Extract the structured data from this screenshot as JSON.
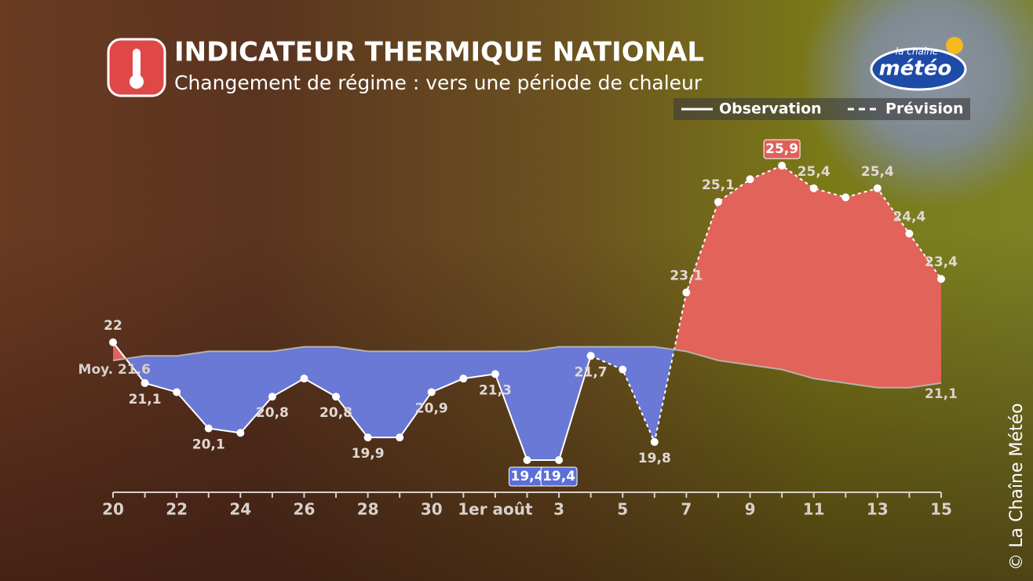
{
  "chart_data": {
    "type": "line",
    "title": "INDICATEUR THERMIQUE NATIONAL",
    "subtitle": "Changement de régime : vers une période de chaleur",
    "brand_top": "la chaîne",
    "brand": "météo",
    "copyright": "© La Chaîne Météo",
    "categories": [
      "20",
      null,
      "22",
      null,
      "24",
      null,
      "26",
      null,
      "28",
      null,
      "30",
      null,
      "1er août",
      null,
      "3",
      null,
      "5",
      null,
      "7",
      null,
      "9",
      null,
      "11",
      null,
      "13",
      null,
      "15"
    ],
    "series": [
      {
        "name": "Observation",
        "color": "#ffffff",
        "dashed": false,
        "values": [
          22,
          21.1,
          20.9,
          20.1,
          20.0,
          20.8,
          21.2,
          20.8,
          19.9,
          19.9,
          20.9,
          21.2,
          21.3,
          19.4,
          19.4,
          21.7,
          null,
          null,
          null,
          null,
          null,
          null,
          null,
          null,
          null,
          null,
          null
        ],
        "value_labels": [
          "22",
          "21,1",
          null,
          "20,1",
          null,
          "20,8",
          null,
          "20,8",
          "19,9",
          null,
          "20,9",
          null,
          "21,3",
          "19,4",
          "19,4",
          "21,7",
          null,
          null,
          null,
          null,
          null,
          null,
          null,
          null,
          null,
          null,
          null
        ]
      },
      {
        "name": "Prévision",
        "color": "#ffffff",
        "dashed": true,
        "values": [
          null,
          null,
          null,
          null,
          null,
          null,
          null,
          null,
          null,
          null,
          null,
          null,
          null,
          null,
          null,
          21.7,
          21.4,
          19.8,
          23.1,
          25.1,
          25.6,
          25.9,
          25.4,
          25.2,
          25.4,
          24.4,
          23.4
        ],
        "value_labels": [
          null,
          null,
          null,
          null,
          null,
          null,
          null,
          null,
          null,
          null,
          null,
          null,
          null,
          null,
          null,
          null,
          null,
          "19,8",
          "23,1",
          "25,1",
          null,
          "25,9",
          "25,4",
          null,
          "25,4",
          "24,4",
          "23,4"
        ]
      },
      {
        "name": "Moy.",
        "color": "#b8b0a8",
        "dashed": false,
        "normal": true,
        "values": [
          21.6,
          21.7,
          21.7,
          21.8,
          21.8,
          21.8,
          21.9,
          21.9,
          21.8,
          21.8,
          21.8,
          21.8,
          21.8,
          21.8,
          21.9,
          21.9,
          21.9,
          21.9,
          21.8,
          21.6,
          21.5,
          21.4,
          21.2,
          21.1,
          21.0,
          21.0,
          21.1
        ],
        "value_labels": [
          "21,6",
          null,
          null,
          null,
          null,
          null,
          null,
          null,
          null,
          null,
          null,
          null,
          null,
          null,
          null,
          null,
          null,
          null,
          null,
          null,
          null,
          null,
          null,
          null,
          null,
          null,
          "21,1"
        ]
      }
    ],
    "above_color": "#e2635a",
    "below_color": "#6a78d6",
    "max_label_color": "#e0605a",
    "min_label_color": "#5c6fd8"
  }
}
